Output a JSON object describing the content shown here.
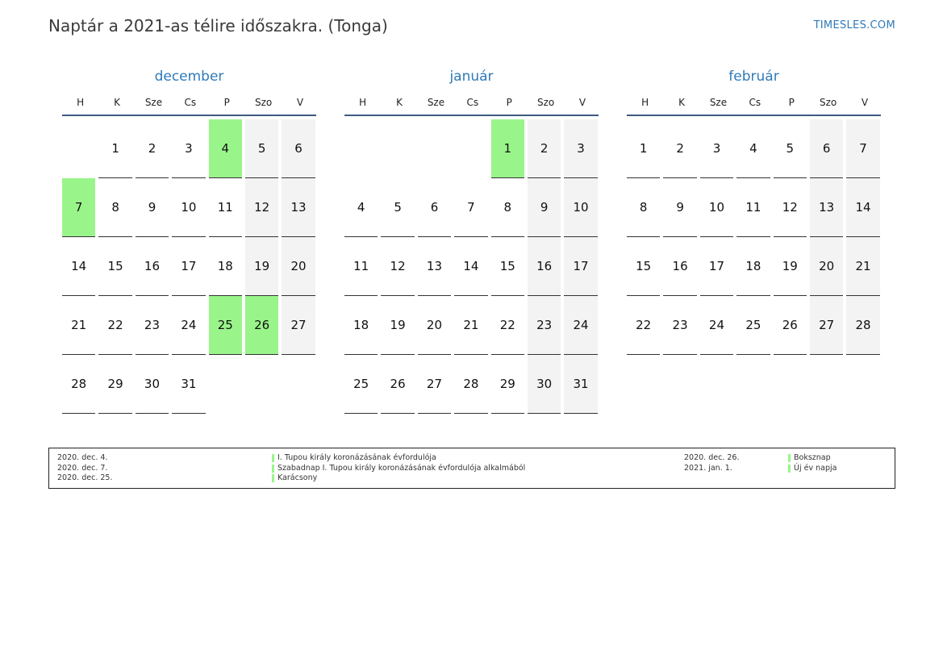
{
  "title": "Naptár a 2021-as télire időszakra. (Tonga)",
  "site": "TIMESLES.COM",
  "colors": {
    "holiday": "#99f58a",
    "weekend": "#f3f3f3",
    "accent": "#2f7ab8"
  },
  "weekdays": [
    "H",
    "K",
    "Sze",
    "Cs",
    "P",
    "Szo",
    "V"
  ],
  "months": [
    {
      "name": "december",
      "offset": 1,
      "days": 31,
      "holidays": [
        4,
        7,
        25,
        26
      ]
    },
    {
      "name": "január",
      "offset": 4,
      "days": 31,
      "holidays": [
        1
      ]
    },
    {
      "name": "február",
      "offset": 0,
      "days": 28,
      "holidays": []
    }
  ],
  "legend": {
    "left_dates": [
      "2020. dec. 4.",
      "2020. dec. 7.",
      "2020. dec. 25."
    ],
    "left_names": [
      "I. Tupou király koronázásának évfordulója",
      "Szabadnap I. Tupou király koronázásának évfordulója alkalmából",
      "Karácsony"
    ],
    "right_dates": [
      "2020. dec. 26.",
      "2021. jan. 1."
    ],
    "right_names": [
      "Boksznap",
      "Új év napja"
    ]
  }
}
